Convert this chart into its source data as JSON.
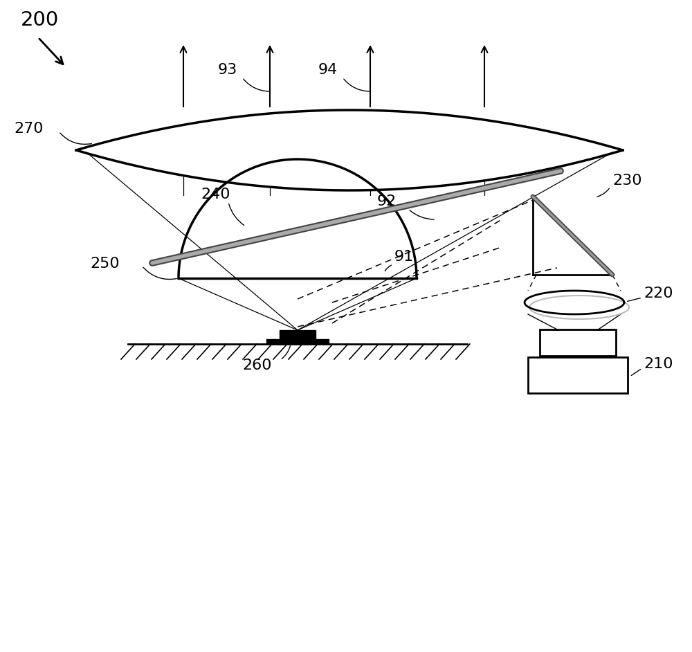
{
  "bg_color": "#ffffff",
  "label_200": "200",
  "label_270": "270",
  "label_93": "93",
  "label_94": "94",
  "label_240": "240",
  "label_92": "92",
  "label_91": "91",
  "label_250": "250",
  "label_260": "260",
  "label_230": "230",
  "label_220": "220",
  "label_210": "210",
  "font_size": 16,
  "line_color": "#000000"
}
